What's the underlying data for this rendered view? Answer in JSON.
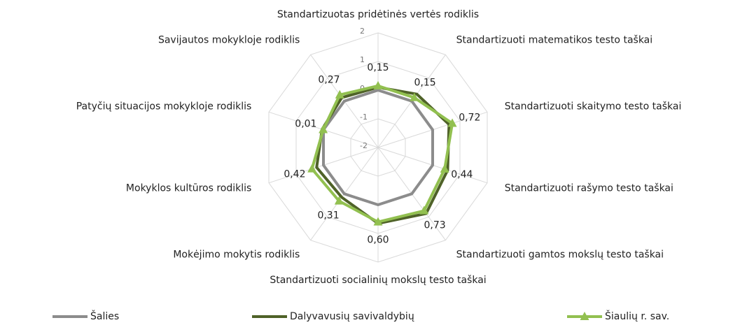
{
  "chart_data": {
    "type": "radar",
    "categories": [
      "Standartizuotas pridėtinės vertės rodiklis",
      "Standartizuoti matematikos testo taškai",
      "Standartizuoti skaitymo testo taškai",
      "Standartizuoti rašymo testo taškai",
      "Standartizuoti gamtos mokslų testo taškai",
      "Standartizuoti socialinių mokslų testo taškai",
      "Mokėjimo mokytis rodiklis",
      "Mokyklos kultūros rodiklis",
      "Patyčių situacijos mokykloje rodiklis",
      "Savijautos mokykloje rodiklis"
    ],
    "ylim": [
      -2,
      2
    ],
    "yticks": [
      -2,
      -1,
      0,
      1,
      2
    ],
    "grid": true,
    "legend": "bottom",
    "series": [
      {
        "name": "Šalies",
        "color": "#8c8c8c",
        "values": [
          0,
          0,
          0,
          0,
          0,
          0,
          0,
          0,
          0,
          0
        ]
      },
      {
        "name": "Dalyvavusių savivaldybių",
        "color": "#4f6228",
        "values": [
          0.1,
          0.3,
          0.6,
          0.55,
          0.85,
          0.65,
          0.15,
          0.25,
          0.05,
          0.15
        ]
      },
      {
        "name": "Šiaulių r. sav.",
        "color": "#92c050",
        "marker": "triangle",
        "values": [
          0.15,
          0.15,
          0.72,
          0.44,
          0.73,
          0.6,
          0.31,
          0.42,
          0.01,
          0.27
        ],
        "value_labels": [
          "0,15",
          "0,15",
          "0,72",
          "0,44",
          "0,73",
          "0,60",
          "0,31",
          "0,42",
          "0,01",
          "0,27"
        ]
      }
    ]
  }
}
